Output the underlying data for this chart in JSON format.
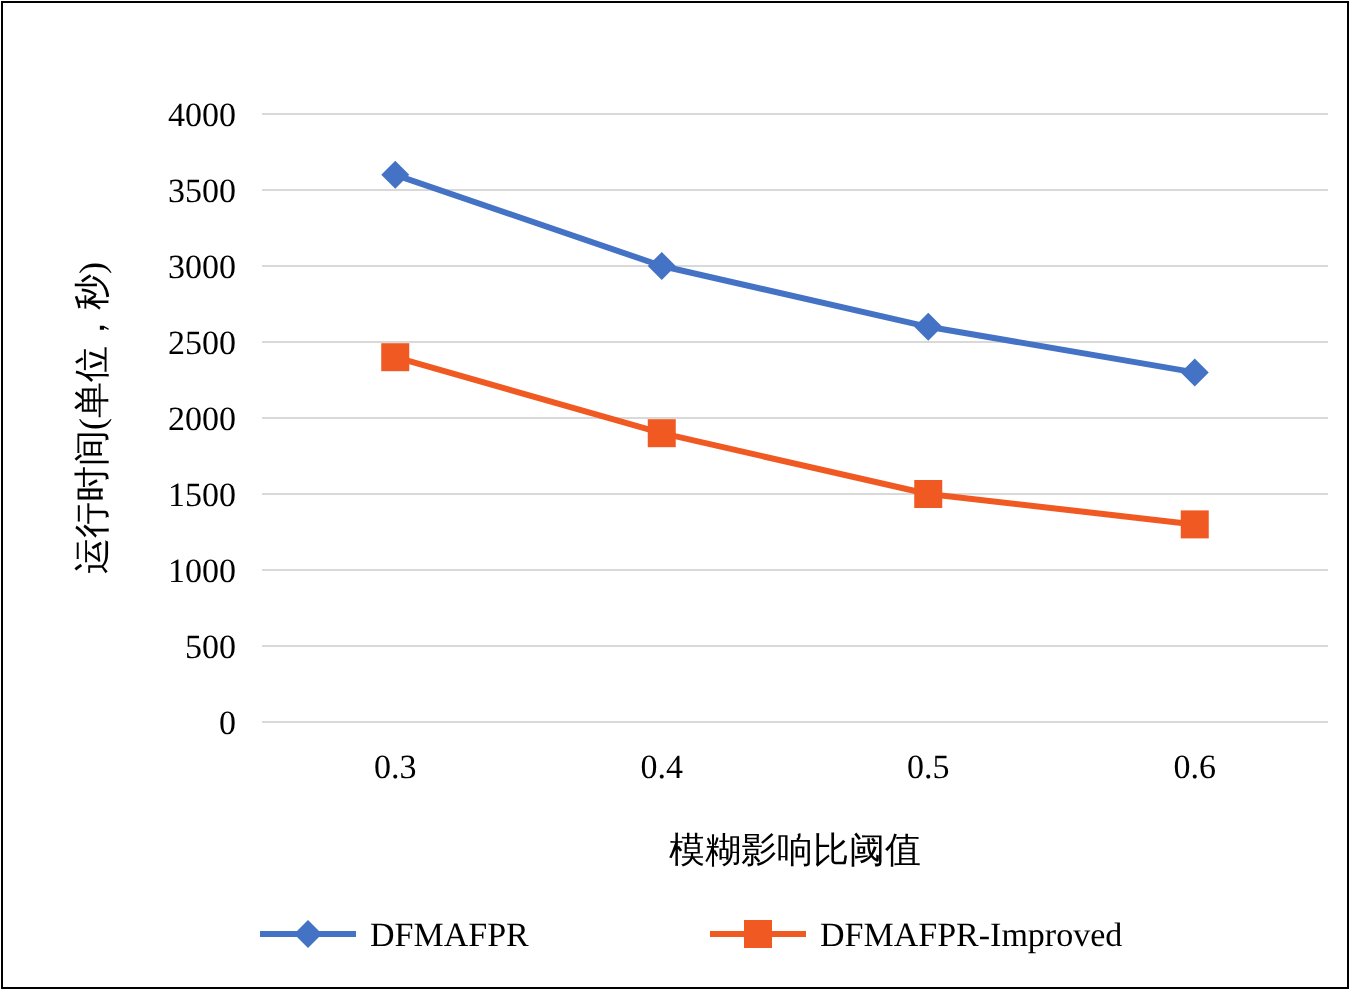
{
  "chart_data": {
    "type": "line",
    "xlabel": "模糊影响比阈值",
    "ylabel": "运行时间(单位，秒)",
    "categories": [
      "0.3",
      "0.4",
      "0.5",
      "0.6"
    ],
    "series": [
      {
        "name": "DFMAFPR",
        "color": "#4472c4",
        "marker": "diamond",
        "values": [
          3600,
          3000,
          2600,
          2300
        ]
      },
      {
        "name": "DFMAFPR-Improved",
        "color": "#f05a22",
        "marker": "square",
        "values": [
          2400,
          1900,
          1500,
          1300
        ]
      }
    ],
    "ylim": [
      0,
      4000
    ],
    "yticks": [
      0,
      500,
      1000,
      1500,
      2000,
      2500,
      3000,
      3500,
      4000
    ],
    "grid": "y",
    "legend": "bottom"
  }
}
